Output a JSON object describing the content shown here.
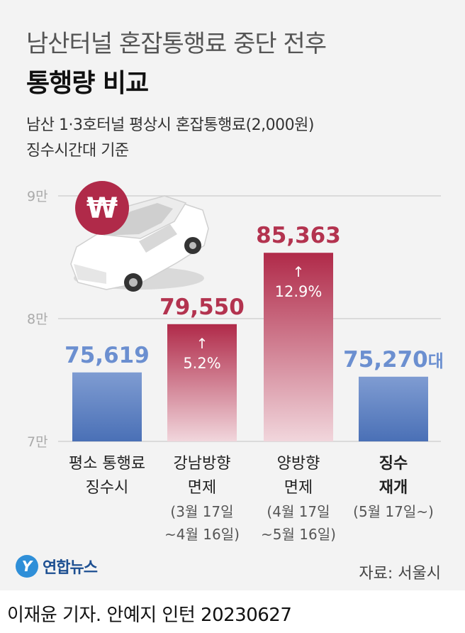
{
  "title": {
    "line1": "남산터널 혼잡통행료 중단 전후",
    "line2": "통행량 비교"
  },
  "subtitle": {
    "line1": "남산 1·3호터널 평상시 혼잡통행료(2,000원)",
    "line2": "징수시간대 기준"
  },
  "chart_data": {
    "type": "bar",
    "ylim": [
      70000,
      90000
    ],
    "yticks": [
      {
        "value": 90000,
        "label": "9만"
      },
      {
        "value": 80000,
        "label": "8만"
      },
      {
        "value": 70000,
        "label": "7만"
      }
    ],
    "grid": true,
    "unit_suffix": "대",
    "categories": [
      {
        "lines": [
          "평소 통행료",
          "징수시"
        ],
        "dates": []
      },
      {
        "lines": [
          "강남방향",
          "면제"
        ],
        "dates": [
          "(3월 17일",
          "~4월 16일)"
        ]
      },
      {
        "lines": [
          "양방향",
          "면제"
        ],
        "dates": [
          "(4월 17일",
          "~5월 16일)"
        ]
      },
      {
        "lines": [
          "징수",
          "재개"
        ],
        "dates": [
          "(5월 17일~)"
        ]
      }
    ],
    "values": [
      75619,
      79550,
      85363,
      75270
    ],
    "value_labels": [
      "75,619",
      "79,550",
      "85,363",
      "75,270"
    ],
    "change_labels": [
      "",
      "5.2%",
      "12.9%",
      ""
    ],
    "change_arrow": "↑",
    "bar_style": [
      "blue",
      "red",
      "red",
      "blue"
    ],
    "category_bold": [
      false,
      false,
      false,
      true
    ]
  },
  "colors": {
    "blue_top": "#7f9cd2",
    "blue_bottom": "#4a70b6",
    "blue_label": "#6b8fd0",
    "red_top": "#b02a49",
    "red_bottom": "#f1d6dc",
    "red_label": "#b3334f",
    "grid": "#d2d2d2",
    "tick": "#aaaaaa",
    "coin": "#b02a49"
  },
  "icons": {
    "car": "car-icon",
    "coin": "won-coin-icon",
    "coin_symbol": "₩"
  },
  "source": "자료: 서울시",
  "logo": {
    "mark": "Y",
    "text": "연합뉴스"
  },
  "byline": "이재윤 기자. 안예지 인턴  20230627"
}
